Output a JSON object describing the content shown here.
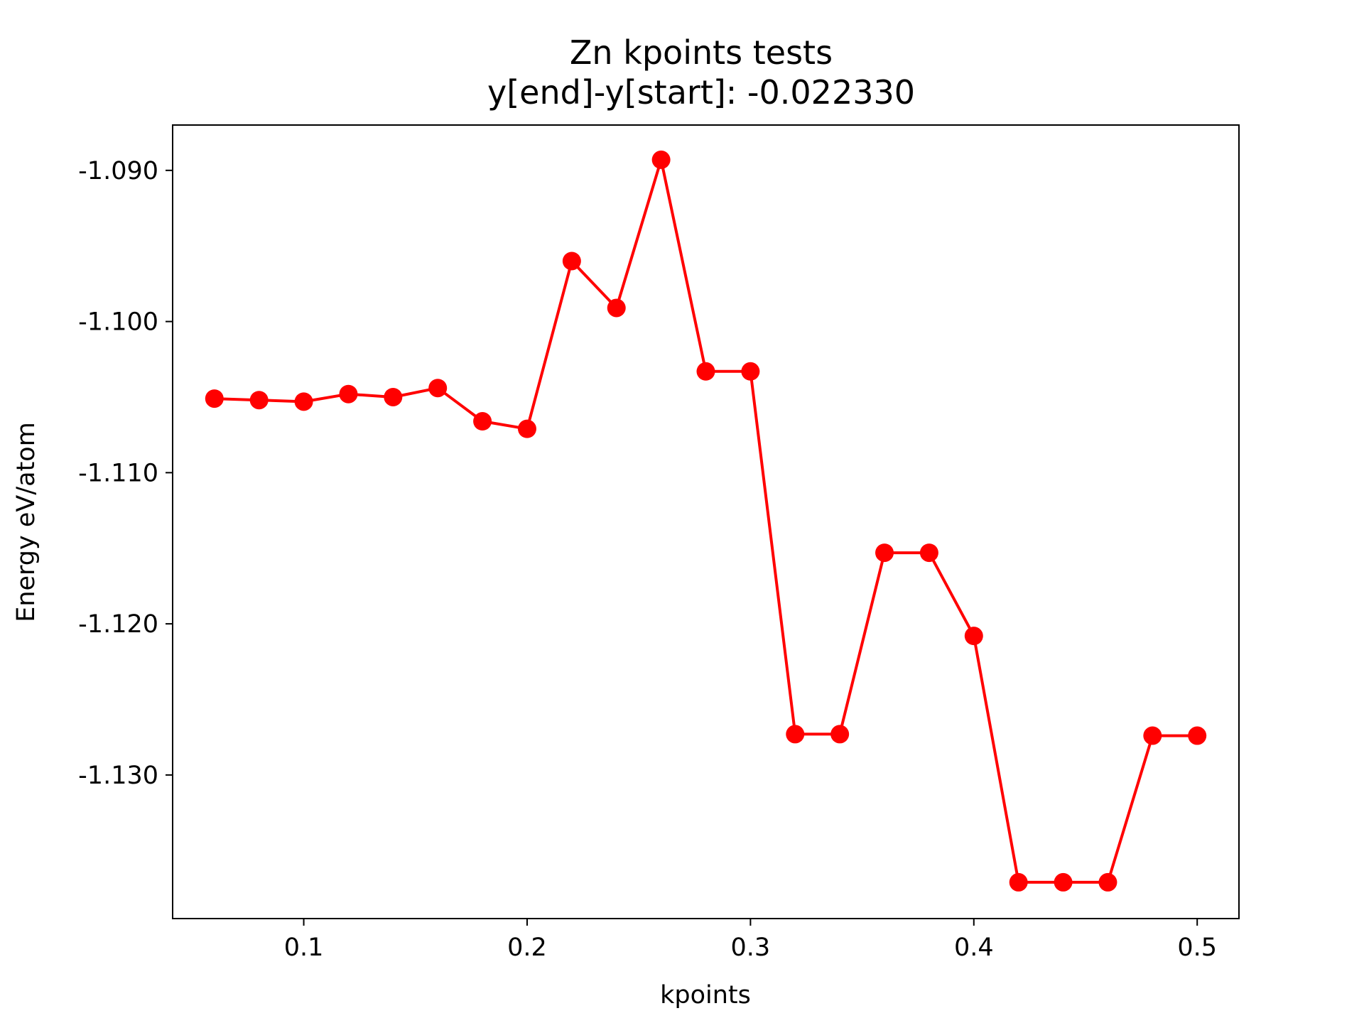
{
  "chart_data": {
    "type": "line",
    "title": "Zn kpoints tests",
    "subtitle": "y[end]-y[start]:  -0.022330",
    "xlabel": "kpoints",
    "ylabel": "Energy eV/atom",
    "xlim": [
      0.0413,
      0.5187
    ],
    "ylim": [
      -1.1395,
      -1.087
    ],
    "xticks": [
      0.1,
      0.2,
      0.3,
      0.4,
      0.5
    ],
    "xtick_labels": [
      "0.1",
      "0.2",
      "0.3",
      "0.4",
      "0.5"
    ],
    "yticks": [
      -1.09,
      -1.1,
      -1.11,
      -1.12,
      -1.13
    ],
    "ytick_labels": [
      "-1.090",
      "-1.100",
      "-1.110",
      "-1.120",
      "-1.130"
    ],
    "grid": false,
    "series": [
      {
        "color": "#ff0000",
        "marker": "circle",
        "x": [
          0.06,
          0.08,
          0.1,
          0.12,
          0.14,
          0.16,
          0.18,
          0.2,
          0.22,
          0.24,
          0.26,
          0.28,
          0.3,
          0.32,
          0.34,
          0.36,
          0.38,
          0.4,
          0.42,
          0.44,
          0.46,
          0.48,
          0.5
        ],
        "y": [
          -1.1051,
          -1.1052,
          -1.1053,
          -1.1048,
          -1.105,
          -1.1044,
          -1.1066,
          -1.1071,
          -1.096,
          -1.0991,
          -1.0893,
          -1.1033,
          -1.1033,
          -1.1273,
          -1.1273,
          -1.1153,
          -1.1153,
          -1.1208,
          -1.1371,
          -1.1371,
          -1.1371,
          -1.1274,
          -1.1274
        ]
      }
    ]
  }
}
